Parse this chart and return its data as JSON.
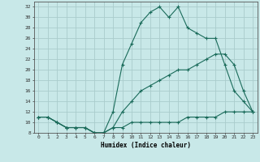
{
  "title": "",
  "xlabel": "Humidex (Indice chaleur)",
  "bg_color": "#c8e8e8",
  "line_color": "#1a6b5a",
  "grid_color": "#aacccc",
  "xlim": [
    -0.5,
    23.5
  ],
  "ylim": [
    8,
    33
  ],
  "xticks": [
    0,
    1,
    2,
    3,
    4,
    5,
    6,
    7,
    8,
    9,
    10,
    11,
    12,
    13,
    14,
    15,
    16,
    17,
    18,
    19,
    20,
    21,
    22,
    23
  ],
  "yticks": [
    8,
    10,
    12,
    14,
    16,
    18,
    20,
    22,
    24,
    26,
    28,
    30,
    32
  ],
  "curve1_x": [
    0,
    1,
    2,
    3,
    4,
    5,
    6,
    7,
    8,
    9,
    10,
    11,
    12,
    13,
    14,
    15,
    16,
    17,
    18,
    19,
    20,
    21,
    22,
    23
  ],
  "curve1_y": [
    11,
    11,
    10,
    9,
    9,
    9,
    8,
    8,
    9,
    9,
    10,
    10,
    10,
    10,
    10,
    10,
    11,
    11,
    11,
    11,
    12,
    12,
    12,
    12
  ],
  "curve2_x": [
    0,
    1,
    2,
    3,
    4,
    5,
    6,
    7,
    8,
    9,
    10,
    11,
    12,
    13,
    14,
    15,
    16,
    17,
    18,
    19,
    20,
    21,
    22,
    23
  ],
  "curve2_y": [
    11,
    11,
    10,
    9,
    9,
    9,
    8,
    8,
    9,
    12,
    14,
    16,
    17,
    18,
    19,
    20,
    20,
    21,
    22,
    23,
    23,
    21,
    16,
    12
  ],
  "curve3_x": [
    0,
    1,
    2,
    3,
    4,
    5,
    6,
    7,
    8,
    9,
    10,
    11,
    12,
    13,
    14,
    15,
    16,
    17,
    18,
    19,
    20,
    21,
    22,
    23
  ],
  "curve3_y": [
    11,
    11,
    10,
    9,
    9,
    9,
    8,
    8,
    12,
    21,
    25,
    29,
    31,
    32,
    30,
    32,
    28,
    27,
    26,
    26,
    21,
    16,
    14,
    12
  ]
}
